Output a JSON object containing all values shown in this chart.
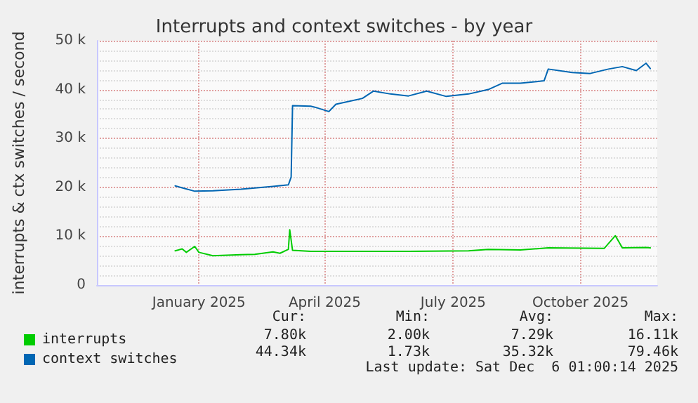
{
  "chart_data": {
    "type": "line",
    "title": "Interrupts and context switches - by year",
    "ylabel": "interrupts & ctx switches / second",
    "xlim": [
      "2024-11-05",
      "2025-12-11"
    ],
    "xticks": [
      {
        "value": "2025-01-17",
        "label": "January 2025"
      },
      {
        "value": "2025-04-17",
        "label": "April 2025"
      },
      {
        "value": "2025-07-18",
        "label": "July 2025"
      },
      {
        "value": "2025-10-17",
        "label": "October 2025"
      }
    ],
    "ylim": [
      0,
      50000
    ],
    "yticks": [
      0,
      {
        "value": 10000,
        "label": "10 k"
      },
      {
        "value": 20000,
        "label": "20 k"
      },
      {
        "value": 30000,
        "label": "30 k"
      },
      {
        "value": 40000,
        "label": "40 k"
      },
      {
        "value": 50000,
        "label": "50 k"
      }
    ],
    "grid": true,
    "legend": "bottom left",
    "marker": "none",
    "line_style": "solid",
    "series": [
      {
        "name": "interrupts",
        "color": "#00cc00",
        "x": [
          "2024-12-31",
          "2025-01-05",
          "2025-01-08",
          "2025-01-14",
          "2025-01-17",
          "2025-01-27",
          "2025-02-16",
          "2025-02-26",
          "2025-03-11",
          "2025-03-16",
          "2025-03-22",
          "2025-03-23",
          "2025-03-25",
          "2025-04-07",
          "2025-06-16",
          "2025-07-29",
          "2025-08-12",
          "2025-09-04",
          "2025-09-24",
          "2025-11-03",
          "2025-11-11",
          "2025-11-16",
          "2025-12-03",
          "2025-12-06"
        ],
        "values": [
          7000,
          7400,
          6700,
          7900,
          6700,
          6000,
          6200,
          6300,
          6800,
          6500,
          7300,
          11300,
          7100,
          6900,
          6900,
          7000,
          7300,
          7200,
          7600,
          7500,
          10100,
          7600,
          7700,
          7600
        ]
      },
      {
        "name": "context switches",
        "color": "#0066b3",
        "x": [
          "2024-12-31",
          "2025-01-05",
          "2025-01-14",
          "2025-01-27",
          "2025-02-16",
          "2025-03-11",
          "2025-03-22",
          "2025-03-24",
          "2025-03-25",
          "2025-04-07",
          "2025-04-10",
          "2025-04-20",
          "2025-04-25",
          "2025-05-14",
          "2025-05-22",
          "2025-06-03",
          "2025-06-16",
          "2025-06-29",
          "2025-07-13",
          "2025-07-29",
          "2025-08-12",
          "2025-08-22",
          "2025-09-04",
          "2025-09-21",
          "2025-09-24",
          "2025-10-11",
          "2025-10-24",
          "2025-11-06",
          "2025-11-16",
          "2025-11-26",
          "2025-12-03",
          "2025-12-06"
        ],
        "values": [
          20300,
          19900,
          19200,
          19300,
          19600,
          20200,
          20500,
          22100,
          36700,
          36600,
          36400,
          35500,
          37000,
          38200,
          39700,
          39100,
          38700,
          39700,
          38600,
          39100,
          40000,
          41300,
          41300,
          41800,
          44200,
          43500,
          43300,
          44200,
          44700,
          43900,
          45400,
          44300
        ]
      }
    ],
    "annotations": [
      "Cur:",
      "Min:",
      "Avg:",
      "Max:",
      "7.80k",
      "2.00k",
      "7.29k",
      "16.11k",
      "44.34k",
      "1.73k",
      "35.32k",
      "79.46k",
      "Last update: Sat Dec  6 01:00:14 2025"
    ]
  }
}
